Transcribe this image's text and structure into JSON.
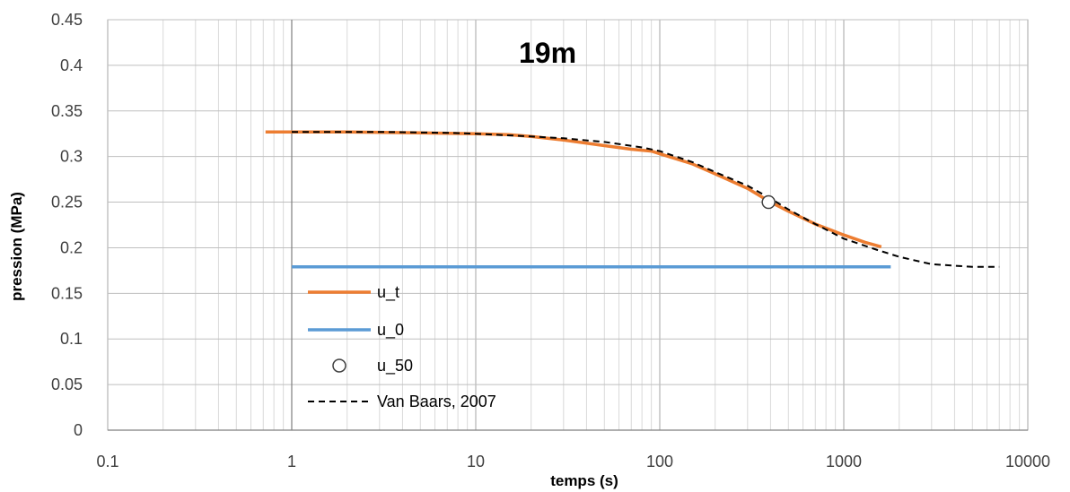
{
  "chart_data": {
    "type": "line",
    "title": "19m",
    "xlabel": "temps (s)",
    "ylabel": "pression (MPa)",
    "x_scale": "log",
    "xlim": [
      0.1,
      10000
    ],
    "ylim": [
      0,
      0.45
    ],
    "x_ticks": [
      "0.1",
      "1",
      "10",
      "100",
      "1000",
      "10000"
    ],
    "y_ticks": [
      "0",
      "0.05",
      "0.1",
      "0.15",
      "0.2",
      "0.25",
      "0.3",
      "0.35",
      "0.4",
      "0.45"
    ],
    "grid": true,
    "legend_position": "lower-left",
    "series": [
      {
        "name": "u_t",
        "style": "solid",
        "color": "#ED7D31",
        "points": [
          [
            0.72,
            0.327
          ],
          [
            2,
            0.327
          ],
          [
            5,
            0.326
          ],
          [
            10,
            0.325
          ],
          [
            15,
            0.324
          ],
          [
            20,
            0.322
          ],
          [
            30,
            0.318
          ],
          [
            50,
            0.312
          ],
          [
            70,
            0.308
          ],
          [
            90,
            0.306
          ],
          [
            100,
            0.303
          ],
          [
            150,
            0.292
          ],
          [
            200,
            0.281
          ],
          [
            300,
            0.265
          ],
          [
            400,
            0.25
          ],
          [
            500,
            0.24
          ],
          [
            700,
            0.226
          ],
          [
            1000,
            0.214
          ],
          [
            1300,
            0.206
          ],
          [
            1600,
            0.201
          ]
        ]
      },
      {
        "name": "u_0",
        "style": "solid",
        "color": "#5B9BD5",
        "points": [
          [
            1,
            0.179
          ],
          [
            1800,
            0.179
          ]
        ]
      },
      {
        "name": "u_50",
        "style": "marker",
        "color": "#404040",
        "points": [
          [
            390,
            0.25
          ]
        ]
      },
      {
        "name": "Van Baars, 2007",
        "style": "dashed",
        "color": "#000000",
        "points": [
          [
            1,
            0.327
          ],
          [
            3,
            0.327
          ],
          [
            7,
            0.326
          ],
          [
            10,
            0.325
          ],
          [
            20,
            0.322
          ],
          [
            30,
            0.32
          ],
          [
            50,
            0.316
          ],
          [
            80,
            0.31
          ],
          [
            100,
            0.306
          ],
          [
            150,
            0.294
          ],
          [
            200,
            0.283
          ],
          [
            300,
            0.268
          ],
          [
            400,
            0.254
          ],
          [
            500,
            0.242
          ],
          [
            700,
            0.226
          ],
          [
            1000,
            0.21
          ],
          [
            1500,
            0.198
          ],
          [
            2000,
            0.19
          ],
          [
            3000,
            0.182
          ],
          [
            5000,
            0.179
          ],
          [
            7000,
            0.179
          ]
        ]
      }
    ]
  }
}
